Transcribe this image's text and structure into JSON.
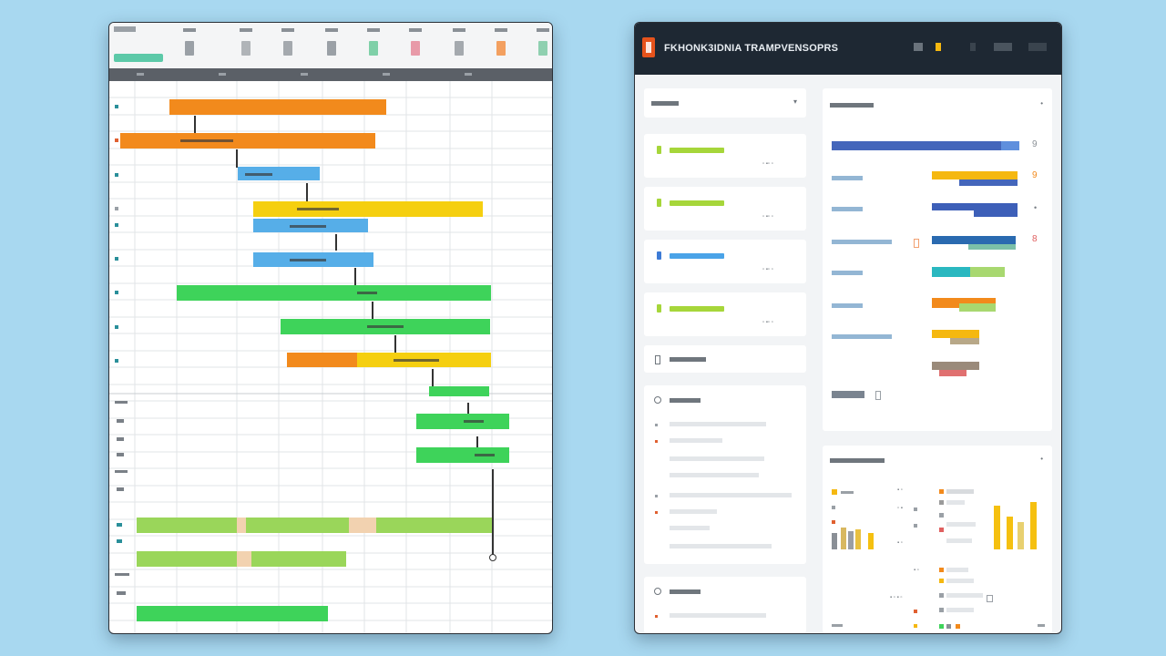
{
  "dashboard": {
    "title": "FKHONK3IDNIA TRAMPVENSOPRS",
    "list_cards": [
      {
        "accent": "#a6d63a",
        "bar_color": "#a6d63a"
      },
      {
        "accent": "#a6d63a",
        "bar_color": "#a6d63a"
      },
      {
        "accent": "#3d7bd6",
        "bar_color": "#4aa3e8"
      },
      {
        "accent": "#a6d63a",
        "bar_color": "#a6d63a"
      }
    ],
    "ranking": {
      "values": [
        "9",
        "9",
        "8"
      ]
    }
  },
  "gantt": {
    "colors": {
      "orange": "#f28a1c",
      "blue": "#56aee8",
      "yellow": "#f5cf10",
      "green": "#3ed35a",
      "lightgreen": "#9ad65a",
      "tan": "#f2d2b0"
    }
  }
}
